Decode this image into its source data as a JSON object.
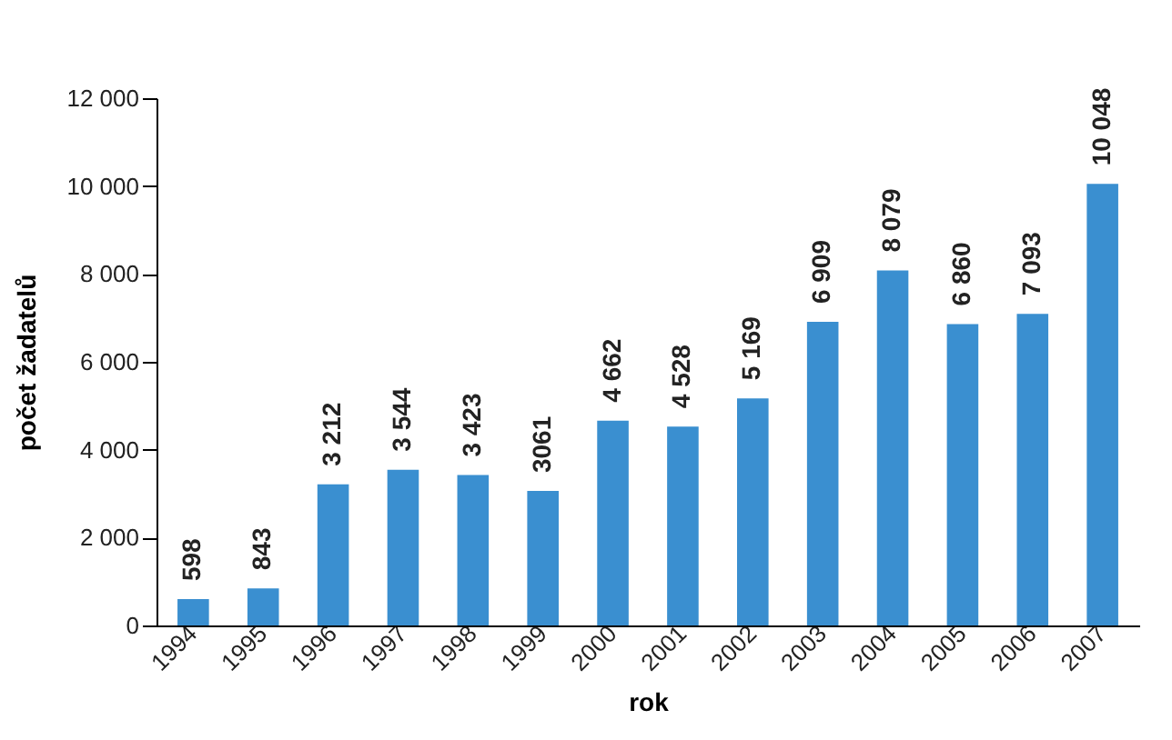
{
  "chart_data": {
    "type": "bar",
    "xlabel": "rok",
    "ylabel": "počet žadatelů",
    "categories": [
      "1994",
      "1995",
      "1996",
      "1997",
      "1998",
      "1999",
      "2000",
      "2001",
      "2002",
      "2003",
      "2004",
      "2005",
      "2006",
      "2007"
    ],
    "values": [
      598,
      843,
      3212,
      3544,
      3423,
      3061,
      4662,
      4528,
      5169,
      6909,
      8079,
      6860,
      7093,
      10048
    ],
    "value_labels": [
      "598",
      "843",
      "3 212",
      "3 544",
      "3 423",
      "3061",
      "4 662",
      "4 528",
      "5 169",
      "6 909",
      "8 079",
      "6 860",
      "7 093",
      "10 048"
    ],
    "color": "#3a8fd0",
    "ylim": [
      0,
      12000
    ],
    "yticks": [
      0,
      {
        "value": 2000,
        "label": "2 000"
      },
      {
        "value": 4000,
        "label": "4 000"
      },
      {
        "value": 6000,
        "label": "6 000"
      },
      {
        "value": 8000,
        "label": "8 000"
      },
      {
        "value": 10000,
        "label": "10 000"
      },
      {
        "value": 12000,
        "label": "12 000"
      }
    ],
    "grid": false
  }
}
